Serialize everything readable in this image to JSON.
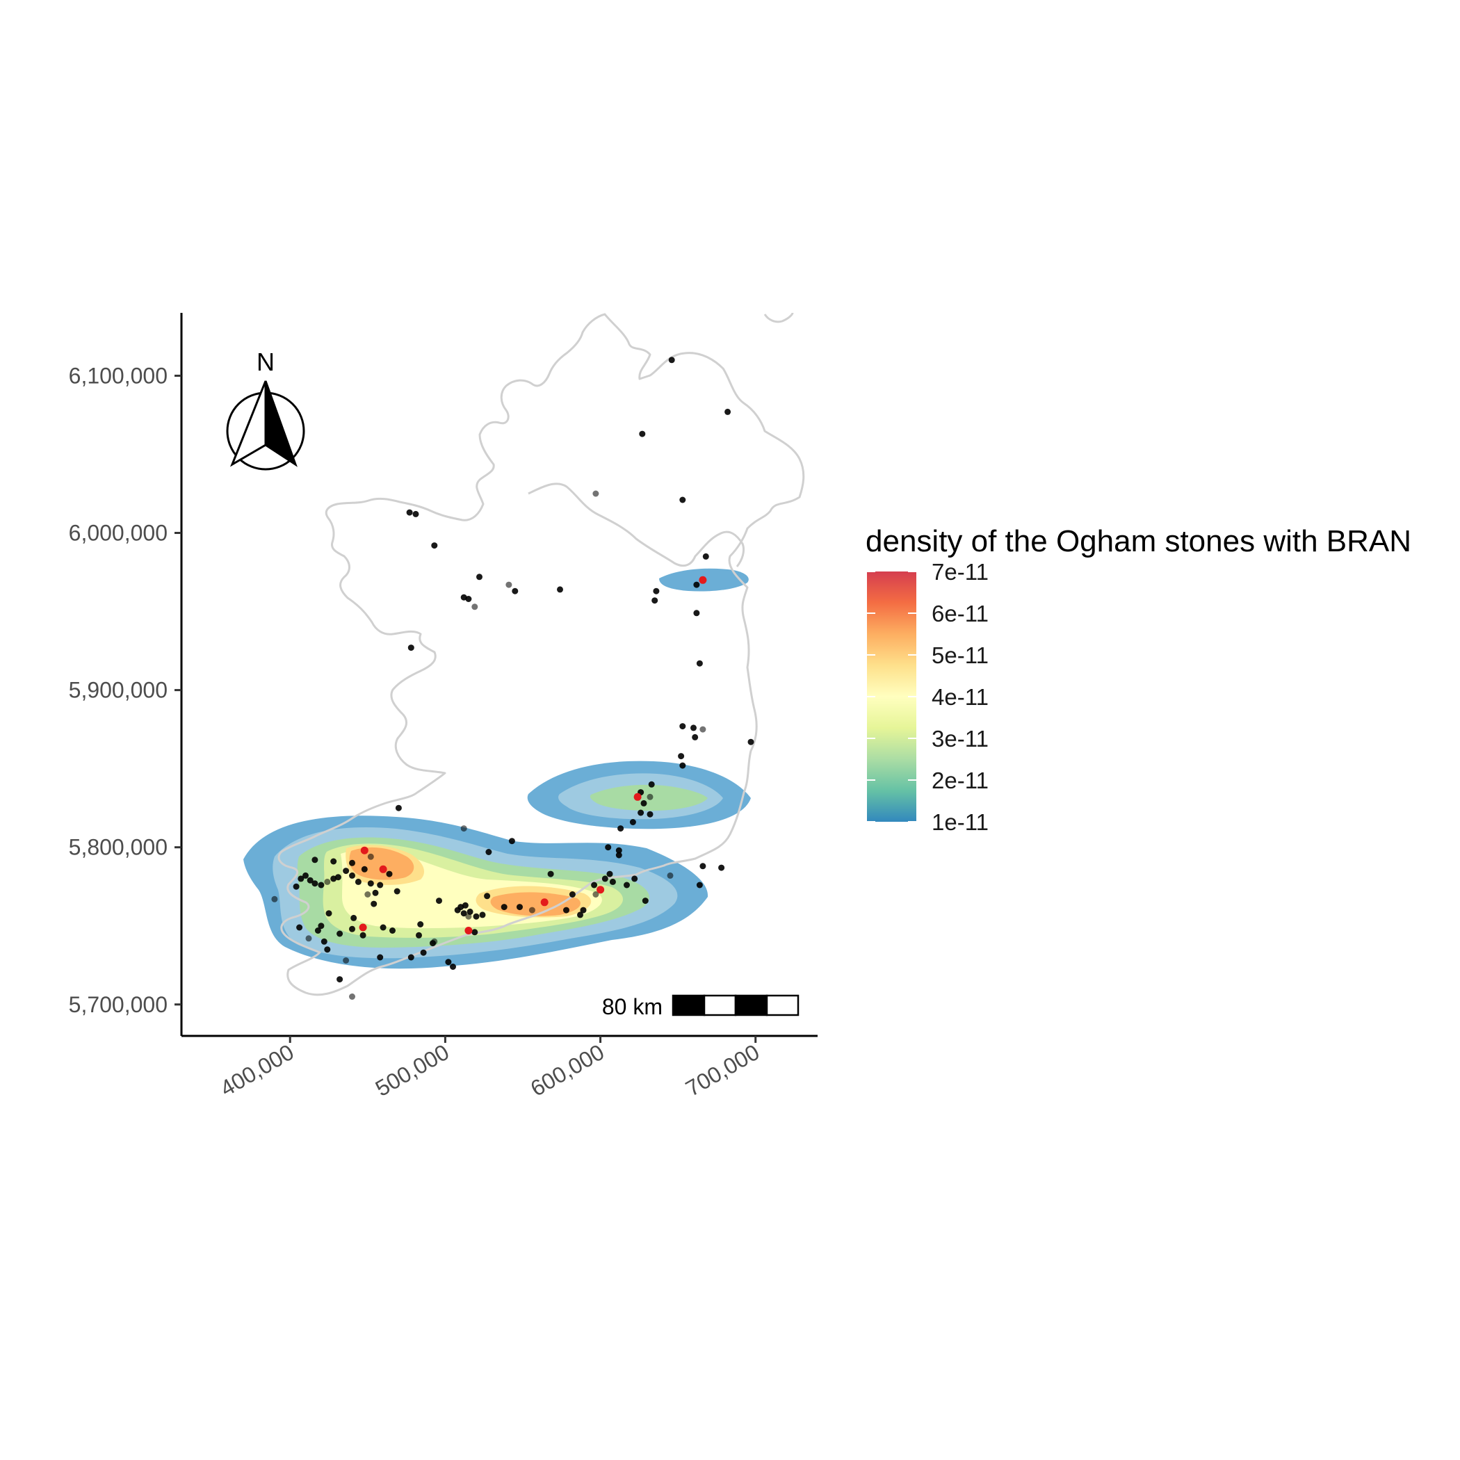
{
  "chart_data": {
    "type": "map-density",
    "title": "",
    "x_ticks": [
      {
        "value": 400000,
        "label": "400,000"
      },
      {
        "value": 500000,
        "label": "500,000"
      },
      {
        "value": 600000,
        "label": "600,000"
      },
      {
        "value": 700000,
        "label": "700,000"
      }
    ],
    "y_ticks": [
      {
        "value": 6100000,
        "label": "6,100,000"
      },
      {
        "value": 6000000,
        "label": "6,000,000"
      },
      {
        "value": 5900000,
        "label": "5,900,000"
      },
      {
        "value": 5800000,
        "label": "5,800,000"
      },
      {
        "value": 5700000,
        "label": "5,700,000"
      }
    ],
    "xlim": [
      330000,
      740000
    ],
    "ylim": [
      5680000,
      6140000
    ],
    "legend": {
      "title": "density of the Ogham stones with BRAN",
      "position": "right",
      "breaks": [
        {
          "value": 7e-11,
          "label": "7e-11"
        },
        {
          "value": 6e-11,
          "label": "6e-11"
        },
        {
          "value": 5e-11,
          "label": "5e-11"
        },
        {
          "value": 4e-11,
          "label": "4e-11"
        },
        {
          "value": 3e-11,
          "label": "3e-11"
        },
        {
          "value": 2e-11,
          "label": "2e-11"
        },
        {
          "value": 1e-11,
          "label": "1e-11"
        }
      ],
      "colors": [
        "#d53e4f",
        "#f46d43",
        "#fdae61",
        "#fee08b",
        "#ffffbf",
        "#e6f598",
        "#abdda4",
        "#66c2a5",
        "#3288bd"
      ]
    },
    "density_levels_colors": [
      "#6baed6",
      "#9ecae1",
      "#a8dba4",
      "#d9f0a0",
      "#ffffbf",
      "#fee08b",
      "#fdae61",
      "#f4a582"
    ],
    "hotspots_brandata": [
      {
        "x": 448000,
        "y": 5798000
      },
      {
        "x": 460000,
        "y": 5786000
      },
      {
        "x": 447000,
        "y": 5749000
      },
      {
        "x": 515000,
        "y": 5747000
      },
      {
        "x": 564000,
        "y": 5765000
      },
      {
        "x": 600000,
        "y": 5773000
      },
      {
        "x": 624000,
        "y": 5832000
      },
      {
        "x": 666000,
        "y": 5970000
      }
    ],
    "ogham_sites": [
      [
        646000,
        6110000
      ],
      [
        682000,
        6077000
      ],
      [
        627000,
        6063000
      ],
      [
        597000,
        6025000
      ],
      [
        653000,
        6021000
      ],
      [
        477000,
        6013000
      ],
      [
        481000,
        6012000
      ],
      [
        493000,
        5992000
      ],
      [
        668000,
        5985000
      ],
      [
        522000,
        5972000
      ],
      [
        541000,
        5967000
      ],
      [
        545000,
        5963000
      ],
      [
        574000,
        5964000
      ],
      [
        636000,
        5963000
      ],
      [
        662000,
        5967000
      ],
      [
        512000,
        5959000
      ],
      [
        515000,
        5958000
      ],
      [
        519000,
        5953000
      ],
      [
        635000,
        5957000
      ],
      [
        662000,
        5949000
      ],
      [
        478000,
        5927000
      ],
      [
        664000,
        5917000
      ],
      [
        653000,
        5877000
      ],
      [
        660000,
        5876000
      ],
      [
        666000,
        5875000
      ],
      [
        661000,
        5870000
      ],
      [
        697000,
        5867000
      ],
      [
        652000,
        5858000
      ],
      [
        653000,
        5852000
      ],
      [
        633000,
        5840000
      ],
      [
        626000,
        5835000
      ],
      [
        632000,
        5832000
      ],
      [
        628000,
        5828000
      ],
      [
        626000,
        5822000
      ],
      [
        632000,
        5821000
      ],
      [
        621000,
        5816000
      ],
      [
        613000,
        5812000
      ],
      [
        470000,
        5825000
      ],
      [
        512000,
        5812000
      ],
      [
        543000,
        5804000
      ],
      [
        528000,
        5797000
      ],
      [
        605000,
        5800000
      ],
      [
        612000,
        5798000
      ],
      [
        612000,
        5795000
      ],
      [
        678000,
        5787000
      ],
      [
        390000,
        5767000
      ],
      [
        404000,
        5775000
      ],
      [
        407000,
        5780000
      ],
      [
        410000,
        5782000
      ],
      [
        413000,
        5779000
      ],
      [
        416000,
        5777000
      ],
      [
        420000,
        5776000
      ],
      [
        424000,
        5778000
      ],
      [
        428000,
        5780000
      ],
      [
        431000,
        5781000
      ],
      [
        436000,
        5785000
      ],
      [
        440000,
        5782000
      ],
      [
        444000,
        5778000
      ],
      [
        448000,
        5786000
      ],
      [
        452000,
        5794000
      ],
      [
        452000,
        5777000
      ],
      [
        455000,
        5771000
      ],
      [
        458000,
        5776000
      ],
      [
        440000,
        5790000
      ],
      [
        416000,
        5792000
      ],
      [
        428000,
        5791000
      ],
      [
        450000,
        5770000
      ],
      [
        454000,
        5764000
      ],
      [
        464000,
        5783000
      ],
      [
        469000,
        5772000
      ],
      [
        425000,
        5758000
      ],
      [
        418000,
        5747000
      ],
      [
        420000,
        5750000
      ],
      [
        412000,
        5742000
      ],
      [
        406000,
        5749000
      ],
      [
        422000,
        5740000
      ],
      [
        424000,
        5735000
      ],
      [
        432000,
        5745000
      ],
      [
        440000,
        5748000
      ],
      [
        441000,
        5755000
      ],
      [
        436000,
        5728000
      ],
      [
        447000,
        5744000
      ],
      [
        458000,
        5730000
      ],
      [
        466000,
        5747000
      ],
      [
        478000,
        5730000
      ],
      [
        483000,
        5744000
      ],
      [
        486000,
        5733000
      ],
      [
        493000,
        5740000
      ],
      [
        496000,
        5766000
      ],
      [
        502000,
        5727000
      ],
      [
        505000,
        5724000
      ],
      [
        508000,
        5760000
      ],
      [
        512000,
        5758000
      ],
      [
        513000,
        5763000
      ],
      [
        515000,
        5756000
      ],
      [
        516000,
        5759000
      ],
      [
        519000,
        5746000
      ],
      [
        524000,
        5757000
      ],
      [
        527000,
        5769000
      ],
      [
        538000,
        5762000
      ],
      [
        548000,
        5762000
      ],
      [
        556000,
        5760000
      ],
      [
        568000,
        5783000
      ],
      [
        578000,
        5760000
      ],
      [
        582000,
        5770000
      ],
      [
        587000,
        5757000
      ],
      [
        589000,
        5760000
      ],
      [
        596000,
        5776000
      ],
      [
        597000,
        5770000
      ],
      [
        603000,
        5780000
      ],
      [
        606000,
        5783000
      ],
      [
        608000,
        5778000
      ],
      [
        617000,
        5776000
      ],
      [
        622000,
        5780000
      ],
      [
        629000,
        5766000
      ],
      [
        645000,
        5782000
      ],
      [
        664000,
        5776000
      ],
      [
        666000,
        5788000
      ],
      [
        492000,
        5739000
      ],
      [
        460000,
        5749000
      ],
      [
        484000,
        5751000
      ],
      [
        432000,
        5716000
      ],
      [
        440000,
        5705000
      ],
      [
        520000,
        5756000
      ],
      [
        510000,
        5762000
      ]
    ],
    "scalebar": {
      "label": "80 km"
    },
    "north_arrow": {
      "label": "N"
    }
  }
}
